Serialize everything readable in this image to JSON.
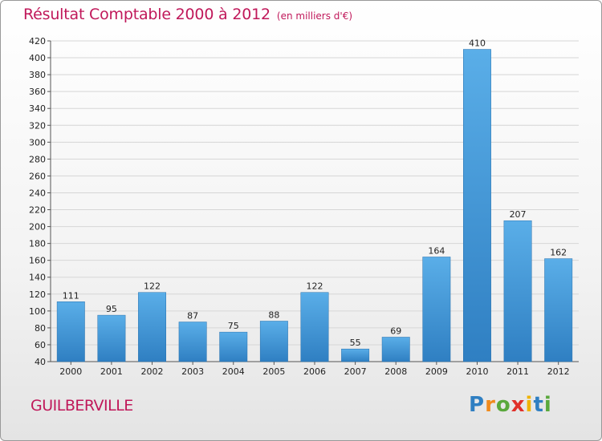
{
  "chart_data": {
    "type": "bar",
    "title": "Résultat Comptable 2000 à 2012",
    "unit_note": "(en milliers d'€)",
    "categories": [
      "2000",
      "2001",
      "2002",
      "2003",
      "2004",
      "2005",
      "2006",
      "2007",
      "2008",
      "2009",
      "2010",
      "2011",
      "2012"
    ],
    "values": [
      111,
      95,
      122,
      87,
      75,
      88,
      122,
      55,
      69,
      164,
      410,
      207,
      162
    ],
    "yticks": [
      40,
      60,
      80,
      100,
      120,
      140,
      160,
      180,
      200,
      220,
      240,
      260,
      280,
      300,
      320,
      340,
      360,
      380,
      400,
      420
    ],
    "ylim": [
      40,
      420
    ],
    "xlabel": "",
    "ylabel": "",
    "bar_color_top": "#5aaee8",
    "bar_color_bottom": "#2f7fc2",
    "grid": true
  },
  "commune": "GUILBERVILLE",
  "logo": {
    "letters": [
      "P",
      "r",
      "o",
      "x",
      "i",
      "t",
      "i"
    ],
    "colors": [
      "#2f7fc2",
      "#f08a1c",
      "#5aa83c",
      "#e0302a",
      "#f0b400",
      "#2f7fc2",
      "#5aa83c"
    ]
  }
}
